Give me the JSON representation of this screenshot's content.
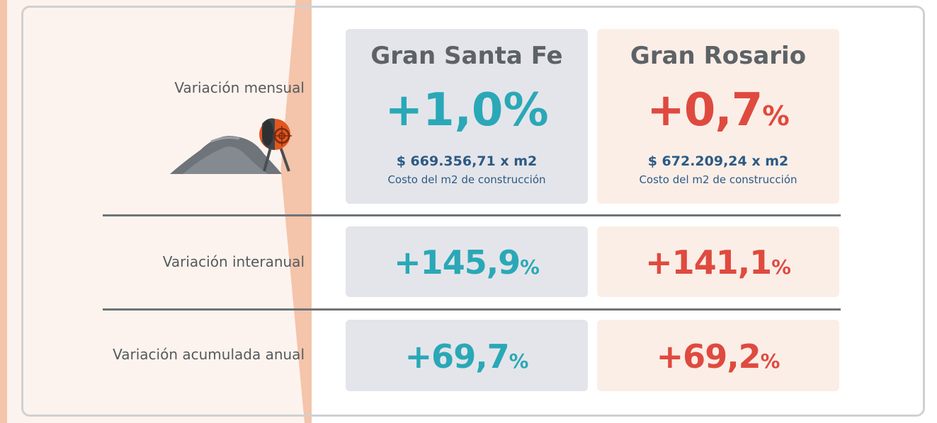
{
  "rows": {
    "monthly_label": "Variación mensual",
    "yoy_label": "Variación interanual",
    "ytd_label": "Variación acumulada anual"
  },
  "santa_fe": {
    "city": "Gran Santa Fe",
    "monthly": "+1,0%",
    "cost": "$ 669.356,71 x m2",
    "cost_caption": "Costo del m2 de construcción",
    "yoy_num": "+145,9",
    "ytd_num": "+69,7",
    "pct": "%"
  },
  "rosario": {
    "city": "Gran Rosario",
    "monthly_num": "+0,7",
    "cost": "$ 672.209,24 x m2",
    "cost_caption": "Costo del m2 de construcción",
    "yoy_num": "+141,1",
    "ytd_num": "+69,2",
    "pct": "%"
  },
  "colors": {
    "santa_fe_accent": "#2aa8b7",
    "rosario_accent": "#df4a3f",
    "label_gray": "#555a5e",
    "cost_blue": "#2c5a85"
  },
  "illustration": "cement-mixer-icon"
}
